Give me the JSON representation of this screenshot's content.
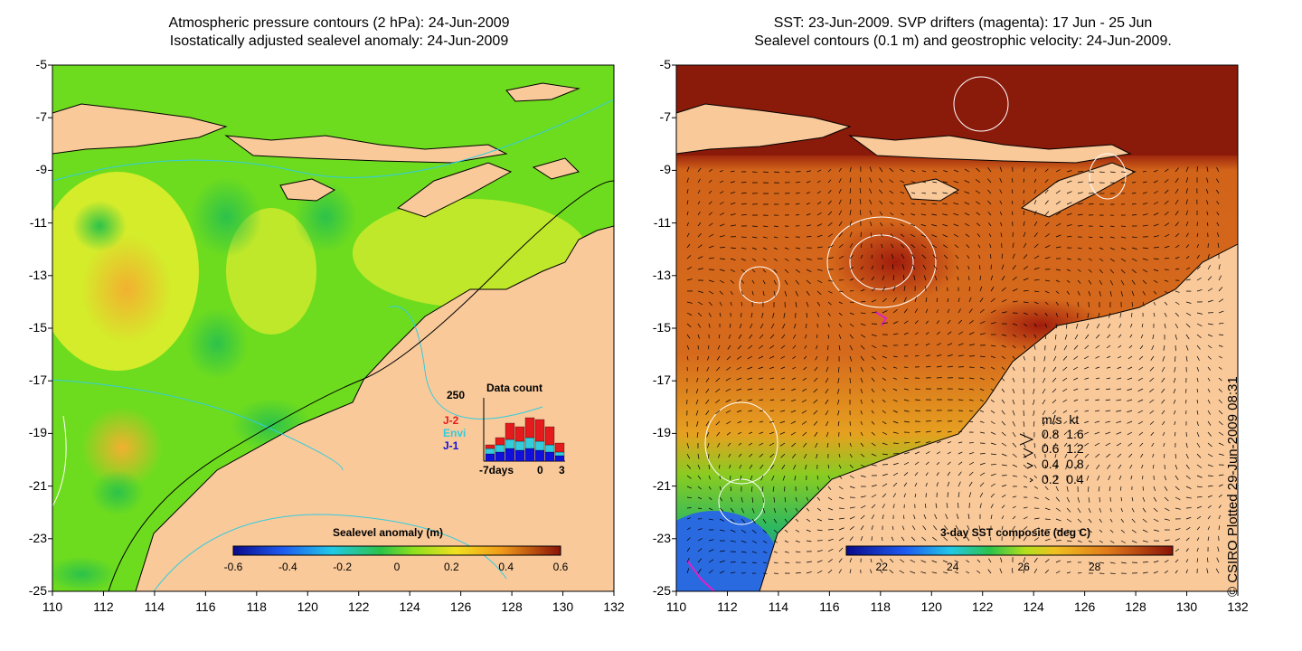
{
  "left_panel": {
    "title_line1": "Atmospheric pressure contours (2 hPa): 24-Jun-2009",
    "title_line2": "Isostatically adjusted sealevel anomaly: 24-Jun-2009",
    "colorbar": {
      "label": "Sealevel anomaly (m)",
      "ticks": [
        "-0.6",
        "-0.4",
        "-0.2",
        "0",
        "0.2",
        "0.4",
        "0.6"
      ]
    },
    "data_count": {
      "title": "Data count",
      "ymax_label": "250",
      "legend": [
        {
          "label": "J-2",
          "color": "#e41a1c"
        },
        {
          "label": "Envi",
          "color": "#33ccdd"
        },
        {
          "label": "J-1",
          "color": "#1010dd"
        }
      ],
      "x_labels": [
        "-7days",
        "0",
        "3"
      ]
    }
  },
  "right_panel": {
    "title_line1": "SST: 23-Jun-2009. SVP drifters (magenta): 17 Jun - 25 Jun",
    "title_line2": "Sealevel contours (0.1 m) and geostrophic velocity: 24-Jun-2009.",
    "colorbar": {
      "label": "3-day SST composite (deg C)",
      "ticks": [
        "22",
        "24",
        "26",
        "28"
      ]
    },
    "speed_legend": {
      "header_ms": "m/s",
      "header_kt": "kt",
      "rows": [
        {
          "ms": "0.8",
          "kt": "1.6"
        },
        {
          "ms": "0.6",
          "kt": "1.2"
        },
        {
          "ms": "0.4",
          "kt": "0.8"
        },
        {
          "ms": "0.2",
          "kt": "0.4"
        }
      ]
    }
  },
  "axes": {
    "y_ticks": [
      "-5",
      "-7",
      "-9",
      "-11",
      "-13",
      "-15",
      "-17",
      "-19",
      "-21",
      "-23",
      "-25"
    ],
    "x_ticks": [
      "110",
      "112",
      "114",
      "116",
      "118",
      "120",
      "122",
      "124",
      "126",
      "128",
      "130",
      "132"
    ]
  },
  "credit": "© CSIRO Plotted 29-Jun-2009 08:31",
  "colors": {
    "land": "#f9c99a",
    "sla_green": "#6edc1e",
    "sla_yellow": "#d4ec2a",
    "sst_dark": "#8a1a0a",
    "sst_mid": "#d2641a",
    "sst_cool": "#2a6ae0"
  }
}
